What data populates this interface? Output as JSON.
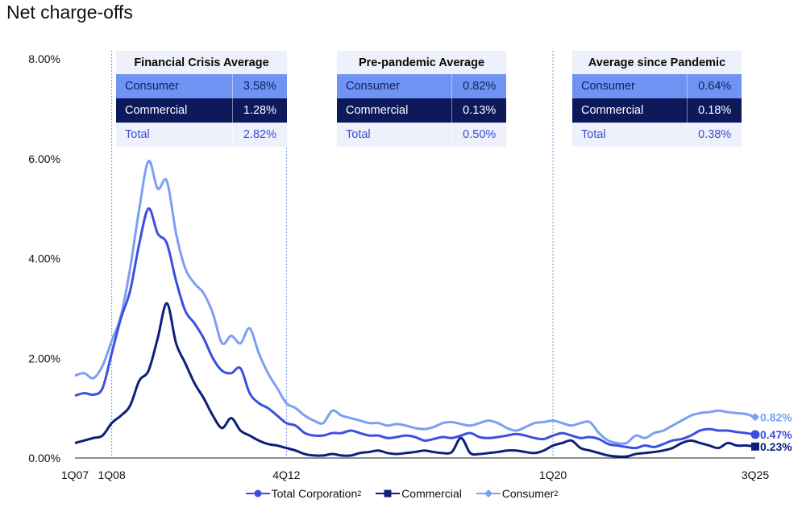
{
  "title": "Net charge-offs",
  "chart_data": {
    "type": "line",
    "title": "Net charge-offs",
    "ylim": [
      0,
      8
    ],
    "yticks": [
      "0.00%",
      "2.00%",
      "4.00%",
      "6.00%",
      "8.00%"
    ],
    "xtick_labels": [
      {
        "label": "1Q07",
        "x": 0
      },
      {
        "label": "1Q08",
        "x": 4
      },
      {
        "label": "4Q12",
        "x": 23
      },
      {
        "label": "1Q20",
        "x": 52
      },
      {
        "label": "3Q25",
        "x": 74
      }
    ],
    "reference_lines_x": [
      4,
      23,
      52
    ],
    "series": [
      {
        "name": "Total Corporation",
        "sup": "2",
        "color": "#3b4fe0",
        "marker": "circle",
        "end_label": "0.47%",
        "values": [
          1.25,
          1.3,
          1.27,
          1.4,
          2.1,
          2.8,
          3.35,
          4.3,
          5.0,
          4.5,
          4.3,
          3.55,
          2.95,
          2.7,
          2.4,
          2.0,
          1.75,
          1.7,
          1.8,
          1.3,
          1.1,
          1.0,
          0.85,
          0.7,
          0.65,
          0.5,
          0.45,
          0.45,
          0.5,
          0.5,
          0.55,
          0.5,
          0.45,
          0.45,
          0.4,
          0.42,
          0.45,
          0.42,
          0.35,
          0.38,
          0.42,
          0.4,
          0.45,
          0.5,
          0.42,
          0.4,
          0.42,
          0.45,
          0.48,
          0.45,
          0.4,
          0.38,
          0.45,
          0.5,
          0.45,
          0.4,
          0.42,
          0.38,
          0.28,
          0.25,
          0.22,
          0.2,
          0.25,
          0.22,
          0.28,
          0.35,
          0.38,
          0.45,
          0.55,
          0.58,
          0.55,
          0.55,
          0.52,
          0.5,
          0.47
        ]
      },
      {
        "name": "Commercial",
        "sup": "",
        "color": "#0d1f7a",
        "marker": "square",
        "end_label": "0.23%",
        "values": [
          0.3,
          0.35,
          0.4,
          0.45,
          0.7,
          0.85,
          1.05,
          1.55,
          1.75,
          2.4,
          3.1,
          2.3,
          1.9,
          1.5,
          1.2,
          0.85,
          0.6,
          0.8,
          0.55,
          0.45,
          0.35,
          0.28,
          0.25,
          0.2,
          0.15,
          0.08,
          0.05,
          0.05,
          0.08,
          0.05,
          0.05,
          0.1,
          0.12,
          0.15,
          0.1,
          0.08,
          0.1,
          0.12,
          0.15,
          0.12,
          0.1,
          0.12,
          0.4,
          0.1,
          0.08,
          0.1,
          0.12,
          0.15,
          0.15,
          0.12,
          0.1,
          0.15,
          0.25,
          0.3,
          0.35,
          0.2,
          0.15,
          0.1,
          0.05,
          0.03,
          0.03,
          0.08,
          0.1,
          0.12,
          0.15,
          0.2,
          0.3,
          0.35,
          0.3,
          0.25,
          0.2,
          0.3,
          0.25,
          0.25,
          0.23
        ]
      },
      {
        "name": "Consumer",
        "sup": "2",
        "color": "#7c9ef5",
        "marker": "diamond",
        "end_label": "0.82%",
        "values": [
          1.65,
          1.7,
          1.6,
          1.85,
          2.35,
          2.85,
          3.8,
          5.0,
          5.95,
          5.4,
          5.55,
          4.5,
          3.8,
          3.5,
          3.3,
          2.9,
          2.3,
          2.45,
          2.3,
          2.6,
          2.1,
          1.7,
          1.4,
          1.1,
          1.0,
          0.85,
          0.75,
          0.7,
          0.95,
          0.85,
          0.8,
          0.75,
          0.7,
          0.7,
          0.65,
          0.68,
          0.65,
          0.6,
          0.58,
          0.62,
          0.7,
          0.72,
          0.68,
          0.65,
          0.7,
          0.75,
          0.7,
          0.6,
          0.55,
          0.62,
          0.7,
          0.72,
          0.75,
          0.7,
          0.65,
          0.7,
          0.72,
          0.5,
          0.35,
          0.3,
          0.3,
          0.45,
          0.4,
          0.5,
          0.55,
          0.65,
          0.75,
          0.85,
          0.9,
          0.92,
          0.95,
          0.92,
          0.9,
          0.88,
          0.82
        ]
      }
    ]
  },
  "tables": [
    {
      "heading": "Financial Crisis Average",
      "rows": [
        {
          "label": "Consumer",
          "value": "3.58%"
        },
        {
          "label": "Commercial",
          "value": "1.28%"
        },
        {
          "label": "Total",
          "value": "2.82%"
        }
      ]
    },
    {
      "heading": "Pre-pandemic Average",
      "rows": [
        {
          "label": "Consumer",
          "value": "0.82%"
        },
        {
          "label": "Commercial",
          "value": "0.13%"
        },
        {
          "label": "Total",
          "value": "0.50%"
        }
      ]
    },
    {
      "heading": "Average since Pandemic",
      "rows": [
        {
          "label": "Consumer",
          "value": "0.64%"
        },
        {
          "label": "Commercial",
          "value": "0.18%"
        },
        {
          "label": "Total",
          "value": "0.38%"
        }
      ]
    }
  ],
  "legend": [
    {
      "label": "Total Corporation",
      "sup": "2"
    },
    {
      "label": "Commercial",
      "sup": ""
    },
    {
      "label": "Consumer",
      "sup": "2"
    }
  ]
}
